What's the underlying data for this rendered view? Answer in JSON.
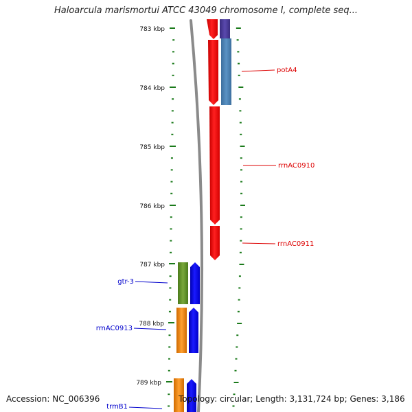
{
  "title": "Haloarcula marismortui ATCC 43049 chromosome I, complete seq...",
  "accession": "Accession: NC_006396",
  "topology": "Topology: circular; Length: 3,131,724 bp; Genes: 3,186",
  "colors": {
    "tick": "#1a7a1a",
    "forward_label": "#dd0000",
    "reverse_label": "#0000cc",
    "red_gene": "#ff1010",
    "blue_gene": "#0a0aff",
    "steel_blue_gene": "#4f86b8",
    "purple_gene": "#4b3c9a",
    "green_gene": "#6a9a2a",
    "orange_gene": "#f08a10",
    "backbone": "#8a8a8a"
  },
  "ruler": {
    "ticks": [
      {
        "label": "783 kbp",
        "kbp": 783
      },
      {
        "label": "784 kbp",
        "kbp": 784
      },
      {
        "label": "785 kbp",
        "kbp": 785
      },
      {
        "label": "786 kbp",
        "kbp": 786
      },
      {
        "label": "787 kbp",
        "kbp": 787
      },
      {
        "label": "788 kbp",
        "kbp": 788
      },
      {
        "label": "789 kbp",
        "kbp": 789
      }
    ]
  },
  "gene_labels": [
    {
      "name": "potA4",
      "strand": "forward"
    },
    {
      "name": "rrnAC0910",
      "strand": "forward"
    },
    {
      "name": "rrnAC0911",
      "strand": "forward"
    },
    {
      "name": "gtr-3",
      "strand": "reverse"
    },
    {
      "name": "rrnAC0913",
      "strand": "reverse"
    },
    {
      "name": "trmB1",
      "strand": "reverse"
    }
  ]
}
